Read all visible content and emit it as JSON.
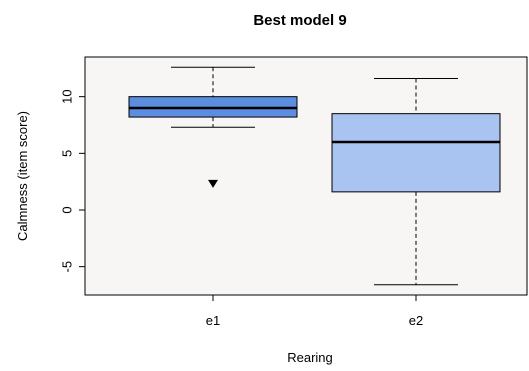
{
  "chart_data": {
    "type": "boxplot",
    "title": "Best model 9",
    "xlabel": "Rearing",
    "ylabel": "Calmness (item score)",
    "categories": [
      "e1",
      "e2"
    ],
    "ylim": [
      -7.5,
      13.5
    ],
    "yticks": [
      -5,
      0,
      5,
      10
    ],
    "ytick_labels": [
      "-5",
      "0",
      "5",
      "10"
    ],
    "grid": false,
    "background": "#f8f6f4",
    "boxes": [
      {
        "category": "e1",
        "whisker_low": 7.3,
        "q1": 8.2,
        "median": 9.0,
        "q3": 10.0,
        "whisker_high": 12.6,
        "outliers": [
          2.3
        ],
        "color": "#5b8ee0"
      },
      {
        "category": "e2",
        "whisker_low": -6.6,
        "q1": 1.6,
        "median": 6.0,
        "q3": 8.5,
        "whisker_high": 11.6,
        "outliers": [],
        "color": "#a9c4f0"
      }
    ]
  }
}
